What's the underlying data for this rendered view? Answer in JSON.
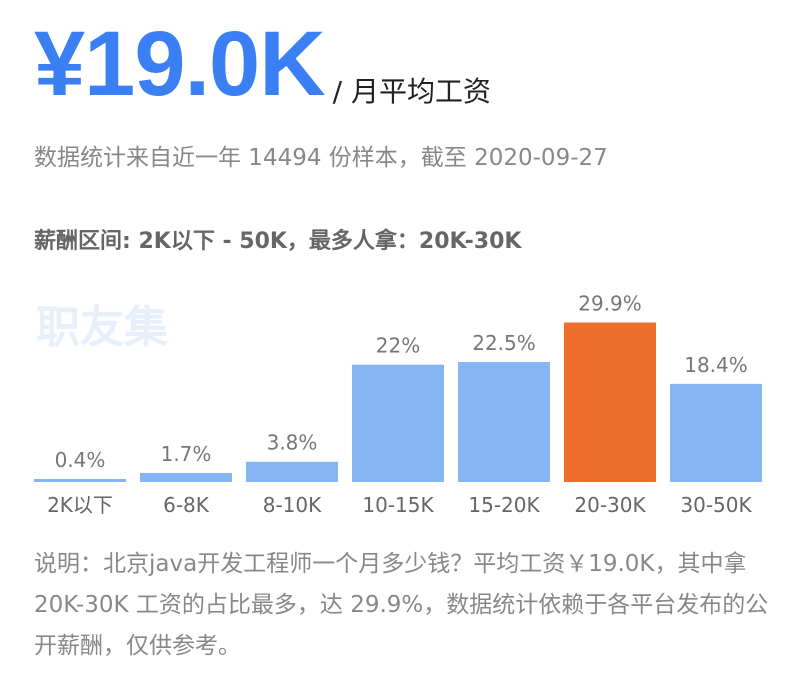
{
  "header": {
    "salary": "¥19.0K",
    "unit_label": "/ 月平均工资",
    "stats_text": "数据统计来自近一年 14494 份样本，截至 2020-09-27",
    "range_text": "薪酬区间: 2K以下 - 50K，最多人拿：20K-30K"
  },
  "watermark": "职友集",
  "colors": {
    "accent_blue": "#3a7ff3",
    "bar_blue": "#86b5f6",
    "bar_highlight": "#ee6e2d"
  },
  "chart_data": {
    "type": "bar",
    "title": "",
    "xlabel": "",
    "ylabel": "",
    "categories": [
      "2K以下",
      "6-8K",
      "8-10K",
      "10-15K",
      "15-20K",
      "20-30K",
      "30-50K"
    ],
    "values": [
      0.4,
      1.7,
      3.8,
      22,
      22.5,
      29.9,
      18.4
    ],
    "value_labels": [
      "0.4%",
      "1.7%",
      "3.8%",
      "22%",
      "22.5%",
      "29.9%",
      "18.4%"
    ],
    "highlight_category": "20-30K",
    "unit": "%",
    "ylim": [
      0,
      30
    ],
    "grid": false
  },
  "note": {
    "text": "说明：北京java开发工程师一个月多少钱？平均工资￥19.0K，其中拿 20K-30K 工资的占比最多，达 29.9%，数据统计依赖于各平台发布的公开薪酬，仅供参考。"
  }
}
